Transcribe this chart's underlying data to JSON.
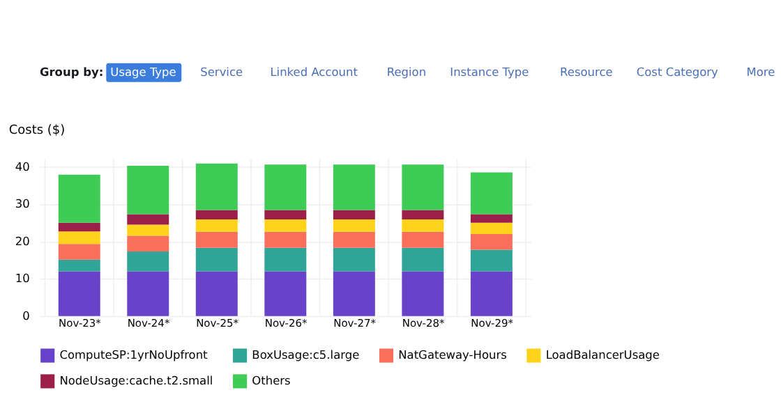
{
  "chart_data": {
    "type": "bar",
    "stacked": true,
    "ylabel": "Costs ($)",
    "annotations": [
      "Group by:",
      "Usage Type",
      "Service",
      "Linked Account",
      "Region",
      "Instance Type",
      "Resource",
      "Cost Category",
      "More"
    ],
    "categories": [
      "Nov-23*",
      "Nov-24*",
      "Nov-25*",
      "Nov-26*",
      "Nov-27*",
      "Nov-28*",
      "Nov-29*"
    ],
    "series": [
      {
        "name": "ComputeSP:1yrNoUpfront",
        "color": "#6842c8",
        "values": [
          12.0,
          12.0,
          12.0,
          12.0,
          12.0,
          12.0,
          12.0
        ]
      },
      {
        "name": "BoxUsage:c5.large",
        "color": "#2ea597",
        "values": [
          3.1,
          5.3,
          6.3,
          6.3,
          6.3,
          6.3,
          5.8
        ]
      },
      {
        "name": "NatGateway-Hours",
        "color": "#fa6f5c",
        "values": [
          4.2,
          4.2,
          4.3,
          4.3,
          4.3,
          4.3,
          4.2
        ]
      },
      {
        "name": "LoadBalancerUsage",
        "color": "#ffd31a",
        "values": [
          3.4,
          3.0,
          3.3,
          3.3,
          3.3,
          3.3,
          3.0
        ]
      },
      {
        "name": "NodeUsage:cache.t2.small",
        "color": "#9c1f4a",
        "values": [
          2.3,
          2.8,
          2.5,
          2.5,
          2.5,
          2.5,
          2.3
        ]
      },
      {
        "name": "Others",
        "color": "#3ecb56",
        "values": [
          12.9,
          13.0,
          12.5,
          12.2,
          12.2,
          12.2,
          11.2
        ]
      }
    ],
    "ylim": [
      0,
      42
    ],
    "yticks": [
      0,
      10,
      20,
      30,
      40
    ],
    "grid": true,
    "legend": "bottom"
  }
}
